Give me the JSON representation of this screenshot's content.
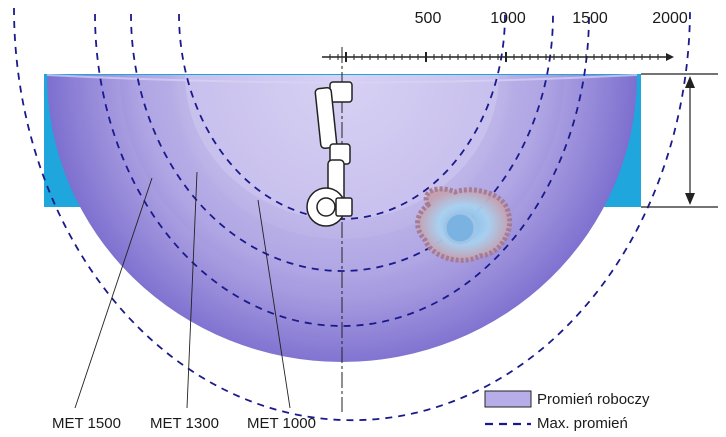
{
  "scale": {
    "ticks": [
      "500",
      "1000",
      "1500",
      "2000"
    ]
  },
  "zones": [
    {
      "label": "MET 1500",
      "fill_outer": "#7d6fcf",
      "fill_inner": "#c9c2ef"
    },
    {
      "label": "MET 1300",
      "fill_outer": "#8a7dd4",
      "fill_inner": "#d2ccf2"
    },
    {
      "label": "MET 1000",
      "fill_outer": "#9d92dc",
      "fill_inner": "#ddd8f5"
    }
  ],
  "legend": {
    "working_radius": "Promień roboczy",
    "max_radius": "Max. promień"
  },
  "colors": {
    "water": "#1fa6dc",
    "max_radius_line": "#1a1a8c",
    "axis": "#222222"
  }
}
